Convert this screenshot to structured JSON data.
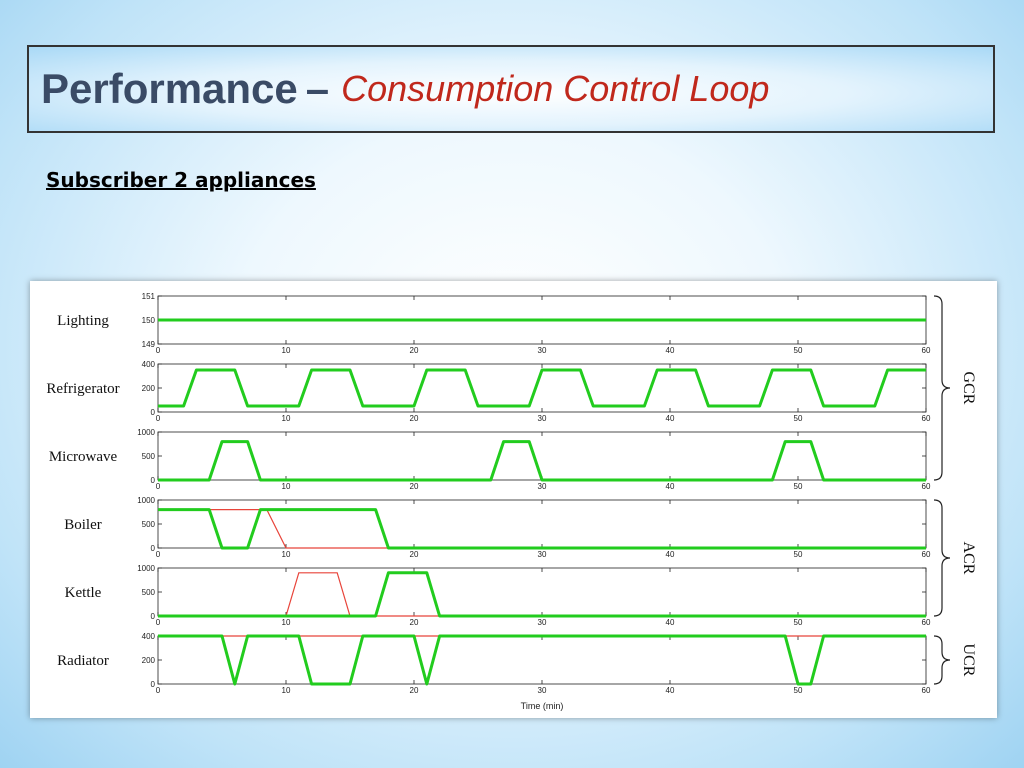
{
  "slide": {
    "title_main": "Performance",
    "title_dash": "–",
    "title_sub": "Consumption Control Loop",
    "subtitle": "Subscriber 2 appliances"
  },
  "chart_data": {
    "type": "line",
    "xlabel": "Time (min)",
    "xlim": [
      0,
      60
    ],
    "xticks": [
      0,
      10,
      20,
      30,
      40,
      50,
      60
    ],
    "colors": {
      "red_series": "#e8443a",
      "green_series": "#22cc1e"
    },
    "groups": [
      {
        "label": "GCR",
        "panels": [
          "Lighting",
          "Refrigerator",
          "Microwave"
        ]
      },
      {
        "label": "ACR",
        "panels": [
          "Boiler",
          "Kettle"
        ]
      },
      {
        "label": "UCR",
        "panels": [
          "Radiator"
        ]
      }
    ],
    "panels": [
      {
        "name": "Lighting",
        "ylim": [
          149,
          151
        ],
        "yticks": [
          149,
          150,
          151
        ],
        "red": {
          "x": [
            0,
            60
          ],
          "y": [
            150,
            150
          ]
        },
        "green": {
          "x": [
            0,
            60
          ],
          "y": [
            150,
            150
          ]
        }
      },
      {
        "name": "Refrigerator",
        "ylim": [
          0,
          400
        ],
        "yticks": [
          0,
          200,
          400
        ],
        "red": {
          "x": [
            0,
            2,
            3,
            6,
            7,
            11,
            12,
            15,
            16,
            20,
            21,
            24,
            25,
            29,
            30,
            33,
            34,
            38,
            39,
            42,
            43,
            47,
            48,
            51,
            52,
            56,
            57,
            60
          ],
          "y": [
            50,
            50,
            350,
            350,
            50,
            50,
            350,
            350,
            50,
            50,
            350,
            350,
            50,
            50,
            350,
            350,
            50,
            50,
            350,
            350,
            50,
            50,
            350,
            350,
            50,
            50,
            350,
            350
          ]
        },
        "green": {
          "x": [
            0,
            2,
            3,
            6,
            7,
            11,
            12,
            15,
            16,
            20,
            21,
            24,
            25,
            29,
            30,
            33,
            34,
            38,
            39,
            42,
            43,
            47,
            48,
            51,
            52,
            56,
            57,
            60
          ],
          "y": [
            50,
            50,
            350,
            350,
            50,
            50,
            350,
            350,
            50,
            50,
            350,
            350,
            50,
            50,
            350,
            350,
            50,
            50,
            350,
            350,
            50,
            50,
            350,
            350,
            50,
            50,
            350,
            350
          ]
        }
      },
      {
        "name": "Microwave",
        "ylim": [
          0,
          1000
        ],
        "yticks": [
          0,
          500,
          1000
        ],
        "red": {
          "x": [
            0,
            4,
            5,
            7,
            8,
            26,
            27,
            29,
            30,
            48,
            49,
            51,
            52,
            60
          ],
          "y": [
            0,
            0,
            800,
            800,
            0,
            0,
            800,
            800,
            0,
            0,
            800,
            800,
            0,
            0
          ]
        },
        "green": {
          "x": [
            0,
            4,
            5,
            7,
            8,
            26,
            27,
            29,
            30,
            48,
            49,
            51,
            52,
            60
          ],
          "y": [
            0,
            0,
            800,
            800,
            0,
            0,
            800,
            800,
            0,
            0,
            800,
            800,
            0,
            0
          ]
        }
      },
      {
        "name": "Boiler",
        "ylim": [
          0,
          1000
        ],
        "yticks": [
          0,
          500,
          1000
        ],
        "red": {
          "x": [
            0,
            8.5,
            10,
            60
          ],
          "y": [
            800,
            800,
            0,
            0
          ]
        },
        "green": {
          "x": [
            0,
            4,
            5,
            7,
            8,
            17,
            18,
            60
          ],
          "y": [
            800,
            800,
            0,
            0,
            800,
            800,
            0,
            0
          ]
        }
      },
      {
        "name": "Kettle",
        "ylim": [
          0,
          1000
        ],
        "yticks": [
          0,
          500,
          1000
        ],
        "red": {
          "x": [
            0,
            10,
            11,
            14,
            15,
            60
          ],
          "y": [
            0,
            0,
            900,
            900,
            0,
            0
          ]
        },
        "green": {
          "x": [
            0,
            17,
            18,
            21,
            22,
            60
          ],
          "y": [
            0,
            0,
            900,
            900,
            0,
            0
          ]
        }
      },
      {
        "name": "Radiator",
        "ylim": [
          0,
          400
        ],
        "yticks": [
          0,
          200,
          400
        ],
        "red": {
          "x": [
            0,
            60
          ],
          "y": [
            400,
            400
          ]
        },
        "green": {
          "x": [
            0,
            5,
            6,
            7,
            11,
            12,
            15,
            16,
            20,
            21,
            22,
            49,
            50,
            51,
            52,
            60
          ],
          "y": [
            400,
            400,
            0,
            400,
            400,
            0,
            0,
            400,
            400,
            0,
            400,
            400,
            0,
            0,
            400,
            400
          ]
        }
      }
    ]
  }
}
